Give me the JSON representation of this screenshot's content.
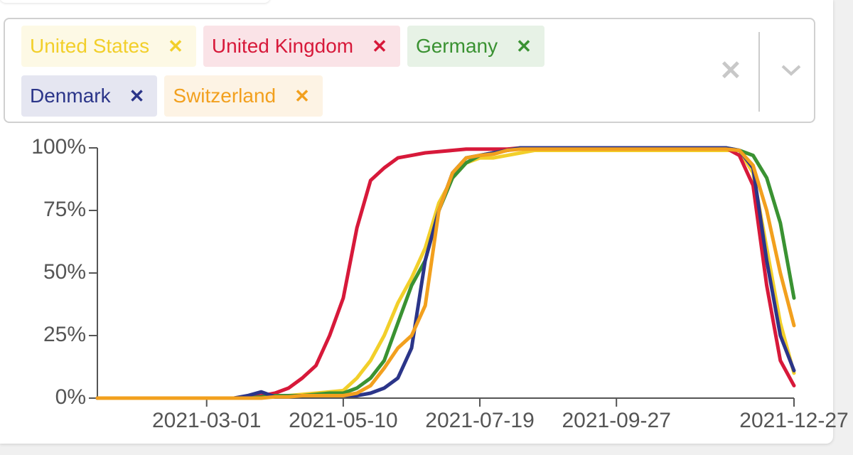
{
  "chart_data": {
    "type": "line",
    "x": [
      "2021-01-04",
      "2021-01-11",
      "2021-01-18",
      "2021-01-25",
      "2021-02-01",
      "2021-02-08",
      "2021-02-15",
      "2021-02-22",
      "2021-03-01",
      "2021-03-08",
      "2021-03-15",
      "2021-03-22",
      "2021-03-29",
      "2021-04-05",
      "2021-04-12",
      "2021-04-19",
      "2021-04-26",
      "2021-05-03",
      "2021-05-10",
      "2021-05-17",
      "2021-05-24",
      "2021-05-31",
      "2021-06-07",
      "2021-06-14",
      "2021-06-21",
      "2021-06-28",
      "2021-07-05",
      "2021-07-12",
      "2021-07-19",
      "2021-07-26",
      "2021-08-02",
      "2021-08-09",
      "2021-08-16",
      "2021-08-23",
      "2021-08-30",
      "2021-09-06",
      "2021-09-13",
      "2021-09-20",
      "2021-09-27",
      "2021-10-04",
      "2021-10-11",
      "2021-10-18",
      "2021-10-25",
      "2021-11-01",
      "2021-11-08",
      "2021-11-15",
      "2021-11-22",
      "2021-11-29",
      "2021-12-06",
      "2021-12-13",
      "2021-12-20",
      "2021-12-27"
    ],
    "series": [
      {
        "name": "United States",
        "color": "#f2cf2a",
        "values": [
          0,
          0,
          0,
          0,
          0,
          0,
          0,
          0,
          0,
          0,
          0,
          0,
          0.5,
          1,
          1,
          1.5,
          2,
          2.5,
          3,
          8,
          15,
          25,
          38,
          48,
          60,
          78,
          88,
          94,
          96,
          96,
          97,
          98,
          99,
          99,
          99,
          99,
          99,
          99,
          99,
          99,
          99,
          99,
          99,
          99,
          99,
          99,
          99,
          99,
          90,
          60,
          30,
          10
        ]
      },
      {
        "name": "United Kingdom",
        "color": "#d7193a",
        "values": [
          0,
          0,
          0,
          0,
          0,
          0,
          0,
          0,
          0,
          0,
          0,
          0.5,
          1,
          2,
          4,
          8,
          13,
          25,
          40,
          68,
          87,
          92,
          96,
          97,
          98,
          98.5,
          99,
          99.5,
          99.5,
          99.5,
          99.5,
          100,
          100,
          100,
          100,
          100,
          100,
          100,
          100,
          100,
          100,
          100,
          100,
          100,
          100,
          100,
          100,
          97,
          85,
          45,
          15,
          5
        ]
      },
      {
        "name": "Germany",
        "color": "#3a9232",
        "values": [
          0,
          0,
          0,
          0,
          0,
          0,
          0,
          0,
          0,
          0,
          0,
          0,
          0.5,
          1,
          1,
          1,
          1.5,
          2,
          2,
          4,
          8,
          15,
          30,
          45,
          55,
          75,
          88,
          94,
          97,
          98,
          99,
          100,
          100,
          100,
          100,
          100,
          100,
          100,
          100,
          100,
          100,
          100,
          100,
          100,
          100,
          100,
          100,
          99,
          97,
          88,
          70,
          40
        ]
      },
      {
        "name": "Denmark",
        "color": "#2b3589",
        "values": [
          0,
          0,
          0,
          0,
          0,
          0,
          0,
          0,
          0,
          0,
          0,
          1,
          2.5,
          0.5,
          0.5,
          1,
          1,
          1,
          1,
          1,
          2,
          4,
          8,
          20,
          55,
          75,
          90,
          96,
          97,
          98,
          99,
          100,
          100,
          100,
          100,
          100,
          100,
          100,
          100,
          100,
          100,
          100,
          100,
          100,
          100,
          100,
          100,
          99,
          92,
          55,
          25,
          11
        ]
      },
      {
        "name": "Switzerland",
        "color": "#f2a01e",
        "values": [
          0,
          0,
          0,
          0,
          0,
          0,
          0,
          0,
          0,
          0,
          0,
          0,
          0,
          0.5,
          0.5,
          1,
          1,
          1,
          1,
          2,
          5,
          12,
          20,
          25,
          37,
          75,
          90,
          96,
          97,
          97.5,
          99,
          99.5,
          99.5,
          99.5,
          99.5,
          99.5,
          99.5,
          99.5,
          99.5,
          99.5,
          99.5,
          99.5,
          99.5,
          99.5,
          99.5,
          99.5,
          99.5,
          99,
          93,
          75,
          50,
          29
        ]
      }
    ],
    "xlim": [
      "2021-01-04",
      "2021-12-27"
    ],
    "xticks": [
      "2021-03-01",
      "2021-05-10",
      "2021-07-19",
      "2021-09-27",
      "2021-12-27"
    ],
    "ylim": [
      0,
      100
    ],
    "yticks": [
      {
        "value": 0,
        "label": "0%"
      },
      {
        "value": 25,
        "label": "25%"
      },
      {
        "value": 50,
        "label": "50%"
      },
      {
        "value": 75,
        "label": "75%"
      },
      {
        "value": 100,
        "label": "100%"
      }
    ]
  }
}
